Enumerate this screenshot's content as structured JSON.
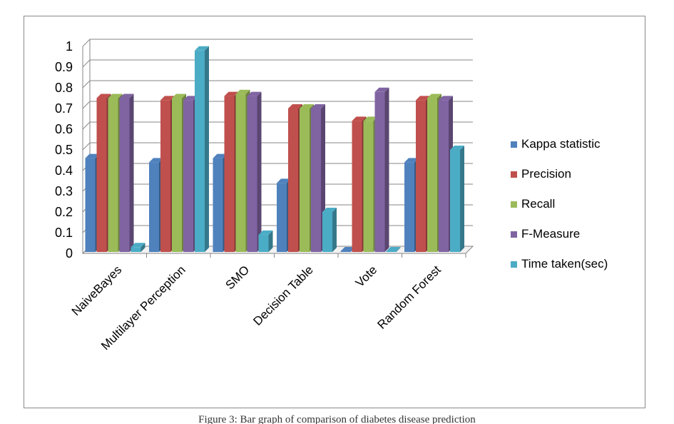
{
  "caption": "Figure 3: Bar graph of comparison of diabetes disease prediction",
  "chart_data": {
    "type": "bar",
    "categories": [
      "NaiveBayes",
      "Multilayer Perception",
      "SMO",
      "Decision Table",
      "Vote",
      "Random Forest"
    ],
    "series": [
      {
        "name": "Kappa statistic",
        "color": "#4F81BD",
        "values": [
          0.46,
          0.44,
          0.46,
          0.34,
          0.0,
          0.44
        ]
      },
      {
        "name": "Precision",
        "color": "#C0504D",
        "values": [
          0.75,
          0.74,
          0.76,
          0.7,
          0.64,
          0.74
        ]
      },
      {
        "name": "Recall",
        "color": "#9BBB59",
        "values": [
          0.75,
          0.75,
          0.77,
          0.7,
          0.64,
          0.75
        ]
      },
      {
        "name": "F-Measure",
        "color": "#8064A2",
        "values": [
          0.75,
          0.74,
          0.76,
          0.7,
          0.78,
          0.74
        ]
      },
      {
        "name": "Time taken(sec)",
        "color": "#4BACC6",
        "values": [
          0.03,
          0.98,
          0.09,
          0.2,
          0.0,
          0.5
        ]
      }
    ],
    "ylim": [
      0,
      1
    ],
    "yticks": [
      "0",
      "0.1",
      "0.2",
      "0.3",
      "0.4",
      "0.5",
      "0.6",
      "0.7",
      "0.8",
      "0.9",
      "1"
    ],
    "grid": true,
    "legend": "right",
    "xlabel": "",
    "ylabel": "",
    "title": ""
  }
}
